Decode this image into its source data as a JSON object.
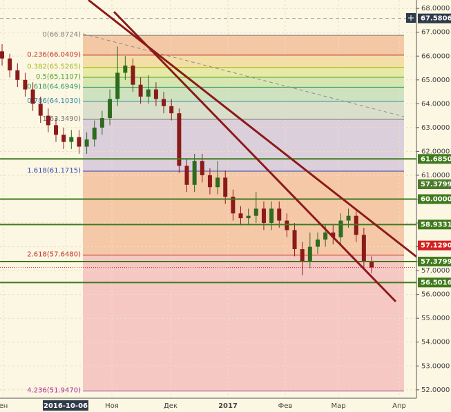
{
  "chart_data": {
    "type": "candlestick",
    "ylim": [
      51.647,
      68.353
    ],
    "yticks": [
      {
        "value": 68,
        "label": "68.0000"
      },
      {
        "value": 67,
        "label": "67.0000"
      },
      {
        "value": 66,
        "label": "66.0000"
      },
      {
        "value": 65,
        "label": "65.0000"
      },
      {
        "value": 64,
        "label": "64.0000"
      },
      {
        "value": 63,
        "label": "63.0000"
      },
      {
        "value": 62,
        "label": "62.0000"
      },
      {
        "value": 61,
        "label": "61.0000"
      },
      {
        "value": 60,
        "label": "60.0000"
      },
      {
        "value": 59,
        "label": "59.0000"
      },
      {
        "value": 58,
        "label": "58.0000"
      },
      {
        "value": 57,
        "label": "57.0000"
      },
      {
        "value": 56,
        "label": "56.0000"
      },
      {
        "value": 55,
        "label": "55.0000"
      },
      {
        "value": 54,
        "label": "54.0000"
      },
      {
        "value": 53,
        "label": "53.0000"
      },
      {
        "value": 52,
        "label": "52.0000"
      }
    ],
    "x_labels": [
      "ен",
      "2016-10-06",
      "Ноя",
      "Дек",
      "2017",
      "Фев",
      "Мар",
      "Апр"
    ],
    "up_color": "#2e6b1f",
    "down_color": "#8b1a1a",
    "open": [
      66.2,
      65.9,
      65.4,
      65.0,
      64.6,
      64.0,
      63.5,
      63.1,
      62.7,
      62.4,
      62.6,
      62.2,
      62.5,
      63.0,
      63.4,
      64.2,
      65.3,
      65.6,
      64.8,
      64.3,
      64.6,
      64.2,
      63.9,
      63.6,
      61.4,
      60.6,
      61.6,
      61.0,
      60.5,
      60.9,
      60.1,
      59.4,
      59.2,
      59.3,
      59.6,
      59.0,
      59.6,
      59.1,
      58.7,
      57.9,
      57.4,
      58.0,
      58.3,
      58.6,
      58.4,
      59.1,
      59.3,
      58.5,
      57.4
    ],
    "high": [
      66.5,
      66.1,
      65.7,
      65.3,
      64.9,
      64.3,
      63.8,
      63.4,
      63.0,
      62.9,
      62.9,
      62.8,
      63.3,
      63.7,
      64.6,
      66.4,
      66.0,
      65.9,
      65.1,
      65.2,
      64.9,
      64.5,
      64.2,
      63.8,
      61.7,
      61.9,
      61.9,
      61.3,
      61.6,
      61.2,
      60.4,
      59.7,
      59.6,
      60.3,
      59.9,
      59.9,
      59.9,
      59.4,
      59.0,
      58.2,
      58.6,
      58.6,
      58.9,
      58.9,
      59.4,
      59.6,
      59.6,
      58.8,
      57.6
    ],
    "low": [
      65.6,
      65.1,
      64.7,
      64.3,
      63.7,
      63.2,
      62.8,
      62.4,
      62.1,
      62.1,
      61.9,
      61.9,
      62.2,
      62.7,
      63.1,
      63.9,
      65.0,
      64.5,
      64.0,
      64.0,
      63.9,
      63.6,
      63.3,
      61.1,
      60.3,
      60.3,
      60.7,
      60.2,
      60.2,
      59.8,
      59.1,
      58.9,
      58.9,
      59.0,
      58.7,
      58.7,
      58.8,
      58.4,
      57.6,
      56.8,
      57.1,
      57.7,
      58.0,
      58.1,
      58.1,
      58.8,
      58.2,
      57.1,
      56.9
    ],
    "close": [
      65.9,
      65.4,
      65.0,
      64.6,
      64.0,
      63.5,
      63.1,
      62.7,
      62.4,
      62.6,
      62.2,
      62.5,
      63.0,
      63.4,
      64.2,
      65.3,
      65.6,
      64.8,
      64.3,
      64.6,
      64.2,
      63.9,
      63.6,
      61.4,
      60.6,
      61.6,
      61.0,
      60.5,
      60.9,
      60.1,
      59.4,
      59.2,
      59.3,
      59.6,
      59.0,
      59.6,
      59.1,
      58.7,
      57.9,
      57.4,
      58.0,
      58.3,
      58.6,
      58.4,
      59.1,
      59.3,
      58.5,
      57.4,
      57.13
    ],
    "fib_levels": [
      {
        "value": 66.8724,
        "label": "0(66.8724)",
        "color": "#808080"
      },
      {
        "value": 66.0409,
        "label": "0.236(66.0409)",
        "color": "#c0302a"
      },
      {
        "value": 65.5265,
        "label": "0.382(65.5265)",
        "color": "#a4b81c"
      },
      {
        "value": 65.1107,
        "label": "0.5(65.1107)",
        "color": "#4aa82a"
      },
      {
        "value": 64.6949,
        "label": "0.618(64.6949)",
        "color": "#2a9a58"
      },
      {
        "value": 64.103,
        "label": "0.786(64.1030)",
        "color": "#2a8aa8"
      },
      {
        "value": 63.349,
        "label": "1(63.3490)",
        "color": "#707070"
      },
      {
        "value": 61.1715,
        "label": "1.618(61.1715)",
        "color": "#3040b0"
      },
      {
        "value": 57.648,
        "label": "2.618(57.6480)",
        "color": "#c0302a"
      },
      {
        "value": 51.947,
        "label": "4.236(51.9470)",
        "color": "#b02aa0"
      }
    ],
    "zone_colors": [
      "#f4c8a4",
      "#f3dea6",
      "#e6eaa4",
      "#d6e6b0",
      "#cfe2c0",
      "#d9dfca",
      "#dccfdc",
      "#f5c8a8",
      "#f6c8c4"
    ],
    "levels": [
      {
        "value": 61.685,
        "label": "61.6850"
      },
      {
        "value": 60,
        "label": "60.0000"
      },
      {
        "value": 58.9331,
        "label": "58.9331"
      },
      {
        "value": 57.3799,
        "label": "57.3799"
      },
      {
        "value": 56.5016,
        "label": "56.5016"
      }
    ],
    "level_color": "#3f7a1c",
    "trend_label": {
      "value": 57.3799,
      "label": "57.3799",
      "color": "#4a7a2a"
    },
    "top_price": {
      "value": 67.5806,
      "label": "67.5806",
      "color": "#2f3b4a"
    },
    "last_price": {
      "value": 57.129,
      "label": "57.1290",
      "color": "#d42020"
    }
  }
}
